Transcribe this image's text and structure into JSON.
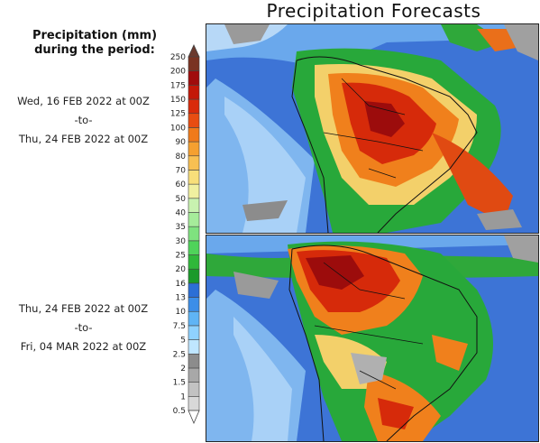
{
  "title": "Precipitation Forecasts",
  "subtitle_line1": "Precipitation (mm)",
  "subtitle_line2": "during the period:",
  "period1": {
    "from": "Wed, 16 FEB 2022 at 00Z",
    "sep": "-to-",
    "to": "Thu, 24 FEB 2022 at 00Z"
  },
  "period2": {
    "from": "Thu, 24 FEB 2022 at 00Z",
    "sep": "-to-",
    "to": "Fri, 04 MAR 2022 at 00Z"
  },
  "colorbar": {
    "levels": [
      "0.5",
      "1",
      "1.5",
      "2",
      "2.5",
      "5",
      "7.5",
      "10",
      "13",
      "16",
      "20",
      "25",
      "30",
      "35",
      "40",
      "50",
      "60",
      "70",
      "80",
      "90",
      "100",
      "125",
      "150",
      "175",
      "200",
      "250"
    ],
    "colors": [
      "#d8d8d8",
      "#c2c2c2",
      "#a8a8a8",
      "#8c8c8c",
      "#bfe6ff",
      "#8fd2ff",
      "#5fb4f5",
      "#3c8ee8",
      "#2c6fd6",
      "#1a9a2a",
      "#2fb83a",
      "#4fd35a",
      "#7fe27f",
      "#a6ec9a",
      "#c8f2b0",
      "#f0f0a0",
      "#f8df7a",
      "#f8c052",
      "#f5a030",
      "#f07a1a",
      "#e84d12",
      "#d92a0a",
      "#c31808",
      "#a00c0c",
      "#7a3322"
    ],
    "top_color": "#6b3a2e",
    "bottom_color": "#ffffff"
  }
}
